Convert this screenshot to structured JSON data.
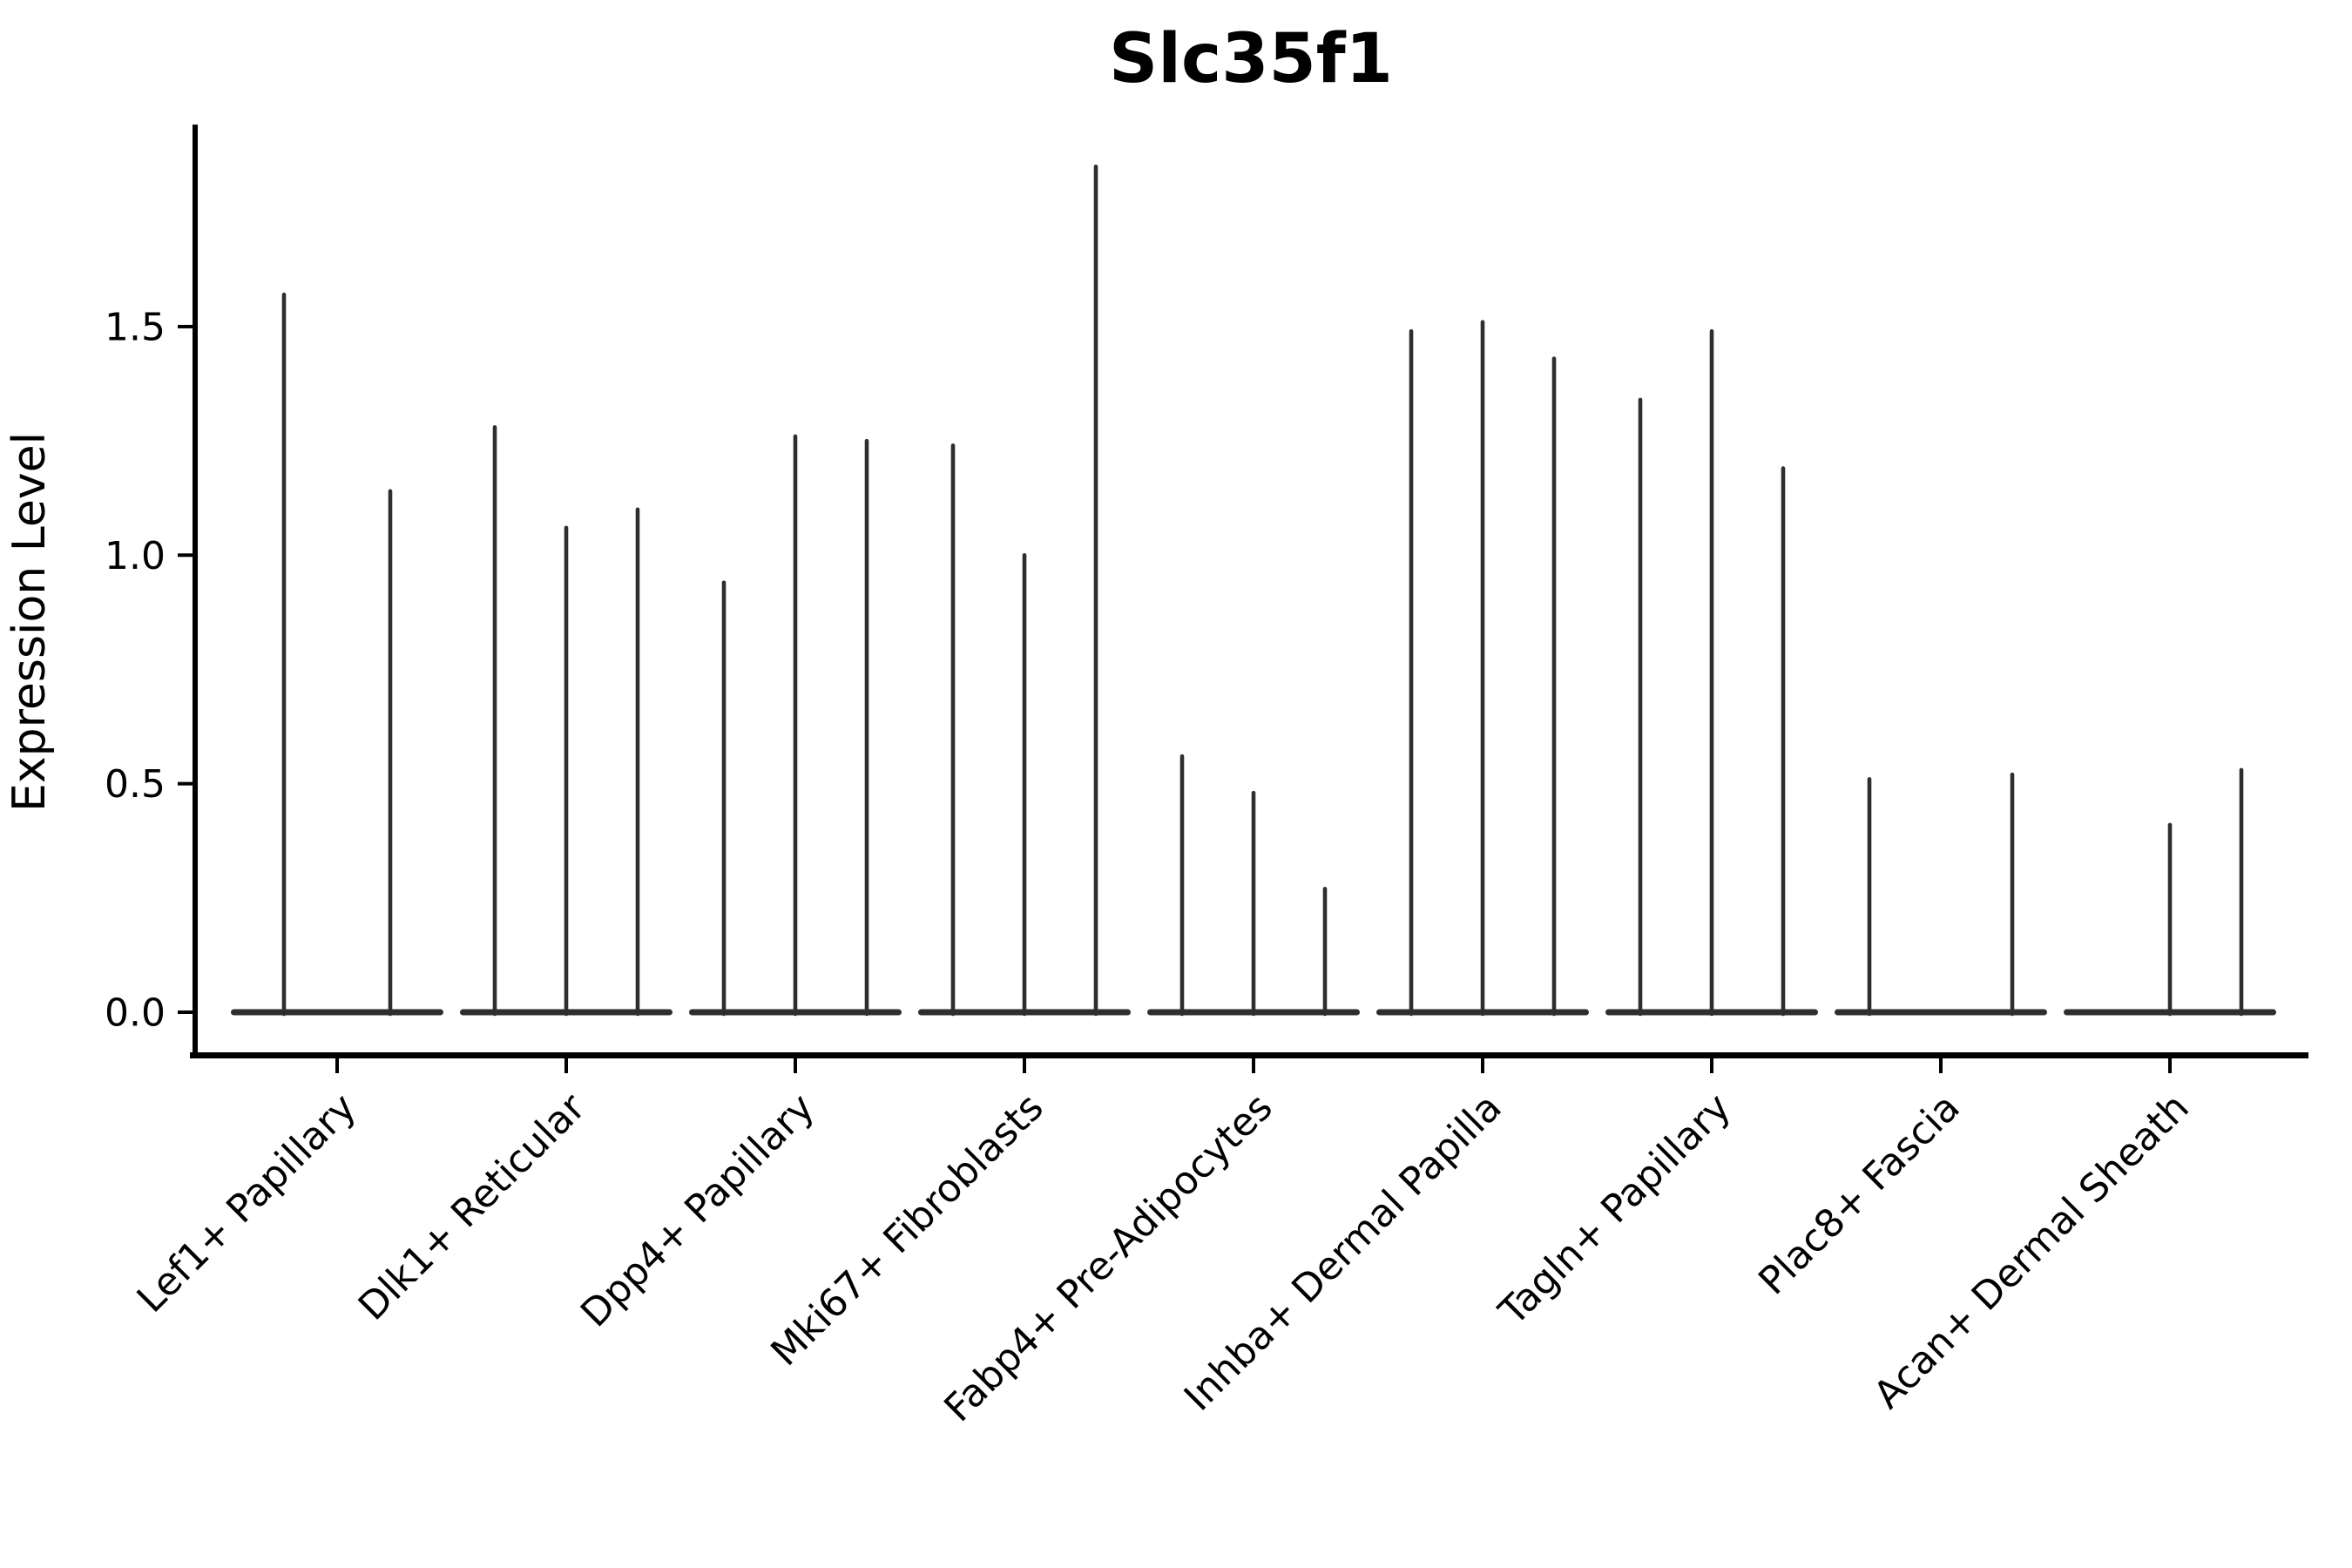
{
  "chart_data": {
    "type": "violin",
    "title": "Slc35f1",
    "ylabel": "Expression Level",
    "xlabel": "",
    "yticks": [
      0.0,
      0.5,
      1.0,
      1.5
    ],
    "ylim": [
      -0.09,
      1.94
    ],
    "grid": false,
    "legend": false,
    "categories": [
      "Lef1+ Papillary",
      "Dlk1+ Reticular",
      "Dpp4+ Papillary",
      "Mki67+ Fibroblasts",
      "Fabp4+ Pre-Adipocytes",
      "Inhba+ Dermal Papilla",
      "Tagln+ Papillary",
      "Plac8+ Fascia",
      "Acan+ Dermal Sheath"
    ],
    "series": [
      {
        "category": "Lef1+ Papillary",
        "violin_peaks": [
          1.57,
          1.14
        ]
      },
      {
        "category": "Dlk1+ Reticular",
        "violin_peaks": [
          1.28,
          1.06,
          1.1
        ]
      },
      {
        "category": "Dpp4+ Papillary",
        "violin_peaks": [
          0.94,
          1.26,
          1.25
        ]
      },
      {
        "category": "Mki67+ Fibroblasts",
        "violin_peaks": [
          1.24,
          1.0,
          1.85
        ]
      },
      {
        "category": "Fabp4+ Pre-Adipocytes",
        "violin_peaks": [
          0.56,
          0.48,
          0.27
        ]
      },
      {
        "category": "Inhba+ Dermal Papilla",
        "violin_peaks": [
          1.49,
          1.51,
          1.43
        ]
      },
      {
        "category": "Tagln+ Papillary",
        "violin_peaks": [
          1.34,
          1.49,
          1.19
        ]
      },
      {
        "category": "Plac8+ Fascia",
        "violin_peaks": [
          0.51,
          0.0,
          0.52
        ]
      },
      {
        "category": "Acan+ Dermal Sheath",
        "violin_peaks": [
          0.0,
          0.41,
          0.53
        ]
      }
    ],
    "colors": {
      "violin": "#2e2e2e",
      "axis": "#000000",
      "text": "#000000",
      "background": "#ffffff"
    }
  }
}
